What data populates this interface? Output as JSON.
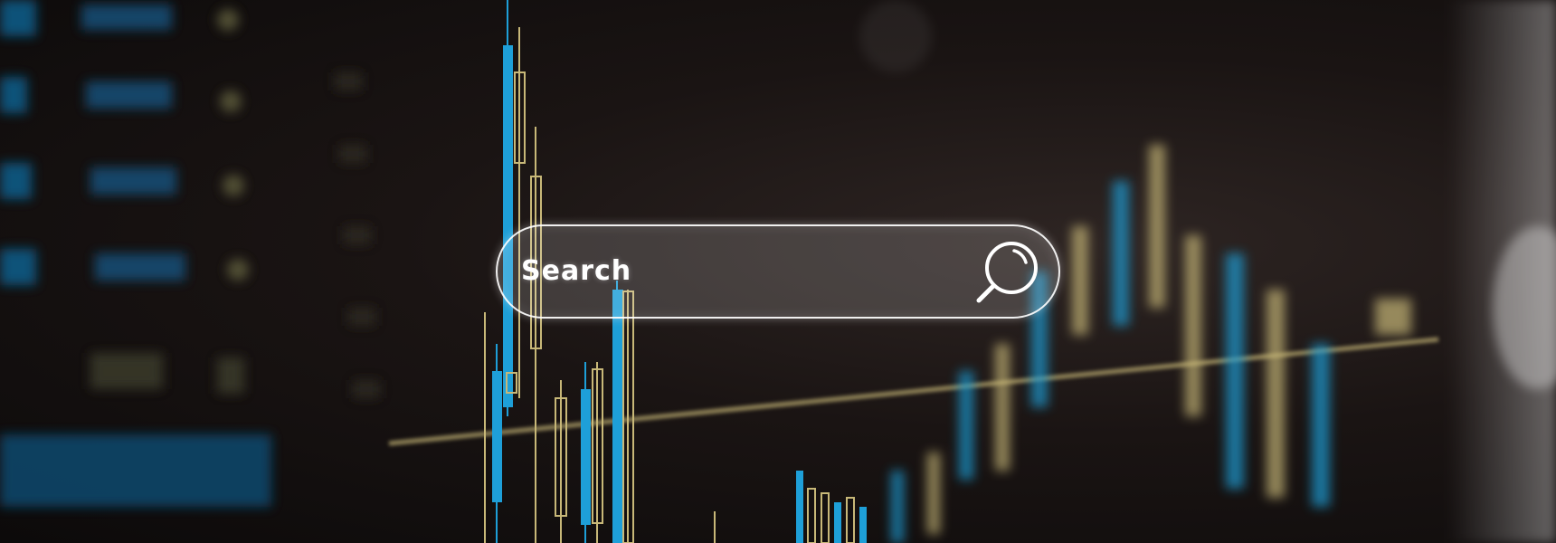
{
  "search": {
    "label": "Search",
    "icon": "search-icon"
  },
  "colors": {
    "background": "#0d0b0b",
    "chart_blue": "#1e9fd8",
    "chart_gold": "#c8b878",
    "search_border": "#ffffff"
  }
}
